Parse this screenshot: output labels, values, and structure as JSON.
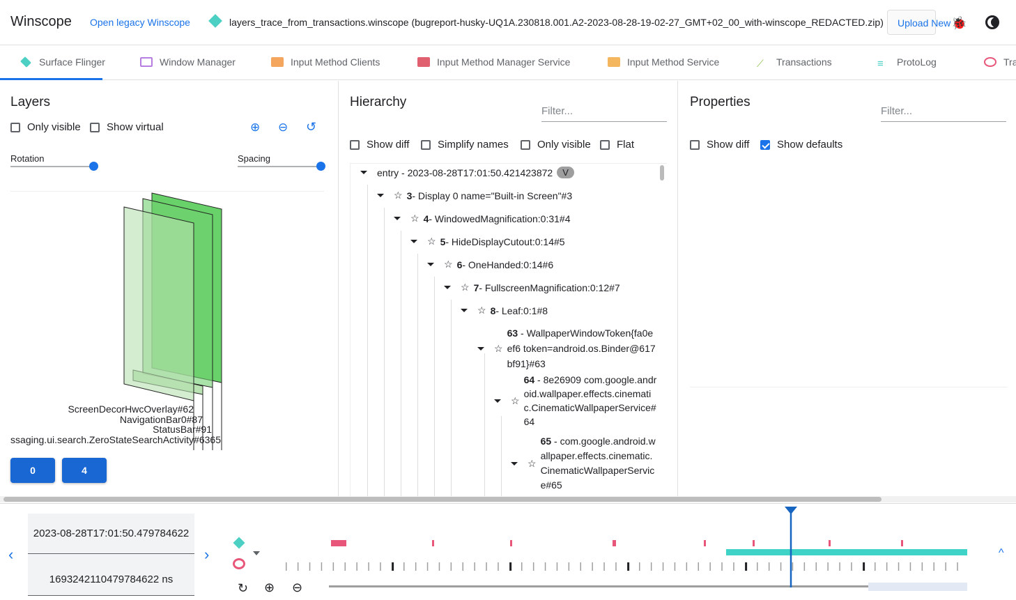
{
  "header": {
    "app_title": "Winscope",
    "legacy_link": "Open legacy Winscope",
    "trace_name": "layers_trace_from_transactions.winscope (bugreport-husky-UQ1A.230818.001.A2-2023-08-28-19-02-27_GMT+02_00_with-winscope_REDACTED.zip)",
    "upload_label": "Upload New",
    "icons": [
      "layers-icon",
      "bug-icon",
      "theme-toggle-icon"
    ]
  },
  "tabs": [
    {
      "label": "Surface Flinger",
      "active": true,
      "color": "#4dd0c4"
    },
    {
      "label": "Window Manager",
      "color": "#b57ee0"
    },
    {
      "label": "Input Method Clients",
      "color": "#f4a65f"
    },
    {
      "label": "Input Method Manager Service",
      "color": "#e06070"
    },
    {
      "label": "Input Method Service",
      "color": "#f4b75f"
    },
    {
      "label": "Transactions",
      "color": "#8bc34a"
    },
    {
      "label": "ProtoLog",
      "color": "#4dd0c4"
    },
    {
      "label": "Tra",
      "color": "#e8577a"
    }
  ],
  "layers": {
    "title": "Layers",
    "only_visible": "Only visible",
    "show_virtual": "Show virtual",
    "rotation": "Rotation",
    "spacing": "Spacing",
    "labels": [
      "ScreenDecorHwcOverlay#62",
      "NavigationBar0#87",
      "StatusBar#91",
      "ssaging.ui.search.ZeroStateSearchActivity#6365"
    ],
    "display_buttons": [
      "0",
      "4"
    ]
  },
  "hierarchy": {
    "title": "Hierarchy",
    "filter_placeholder": "Filter...",
    "show_diff": "Show diff",
    "simplify_names": "Simplify names",
    "only_visible": "Only visible",
    "flat": "Flat",
    "entry": "entry - 2023-08-28T17:01:50.421423872",
    "entry_badge": "V",
    "nodes": [
      {
        "id": "3",
        "name": " - Display 0 name=\"Built-in Screen\"#3"
      },
      {
        "id": "4",
        "name": " - WindowedMagnification:0:31#4"
      },
      {
        "id": "5",
        "name": " - HideDisplayCutout:0:14#5"
      },
      {
        "id": "6",
        "name": " - OneHanded:0:14#6"
      },
      {
        "id": "7",
        "name": " - FullscreenMagnification:0:12#7"
      },
      {
        "id": "8",
        "name": " - Leaf:0:1#8"
      },
      {
        "id": "63",
        "name": " - WallpaperWindowToken{fa0eef6 token=android.os.Binder@617bf91}#63"
      },
      {
        "id": "64",
        "name": " - 8e26909 com.google.android.wallpaper.effects.cinematic.CinematicWallpaperService#64"
      },
      {
        "id": "65",
        "name": " - com.google.android.wallpaper.effects.cinematic.CinematicWallpaperService#65"
      }
    ]
  },
  "properties": {
    "title": "Properties",
    "filter_placeholder": "Filter...",
    "show_diff": "Show diff",
    "show_defaults": "Show defaults",
    "show_defaults_checked": true
  },
  "timeline": {
    "timestamp": "2023-08-28T17:01:50.479784622",
    "timestamp_ns": "1693242110479784622 ns",
    "accent": "#1a73e8",
    "cursor_color": "#1565c0"
  }
}
